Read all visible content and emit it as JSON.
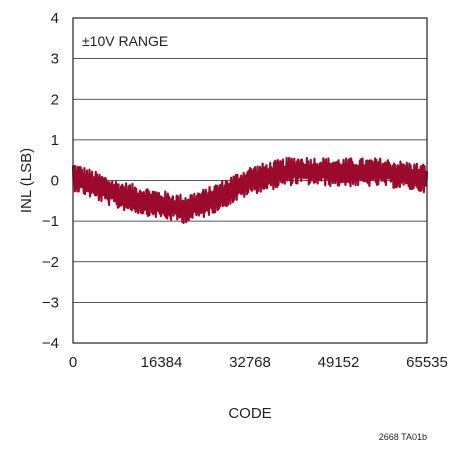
{
  "chart_data": {
    "type": "line",
    "title": "",
    "xlabel": "CODE",
    "ylabel": "INL (LSB)",
    "xlim": [
      0,
      65535
    ],
    "ylim": [
      -4,
      4
    ],
    "x_ticks": [
      "0",
      "16384",
      "32768",
      "49152",
      "65535"
    ],
    "x_tick_values": [
      0,
      16384,
      32768,
      49152,
      65535
    ],
    "y_ticks": [
      "4",
      "3",
      "2",
      "1",
      "0",
      "−1",
      "−2",
      "−3",
      "−4"
    ],
    "y_tick_values": [
      4,
      3,
      2,
      1,
      0,
      -1,
      -2,
      -3,
      -4
    ],
    "grid": "horizontal",
    "annotation": "±10V RANGE",
    "series_color": "#9b0a2d",
    "series": [
      {
        "trend_x": [
          0,
          8192,
          16384,
          20480,
          24576,
          32768,
          40960,
          49152,
          57344,
          65535
        ],
        "trend_y": [
          0.1,
          -0.35,
          -0.6,
          -0.7,
          -0.55,
          0.0,
          0.25,
          0.2,
          0.2,
          0.05
        ],
        "noise_amplitude": 0.35
      }
    ]
  },
  "figure_id": "2668 TA01b"
}
